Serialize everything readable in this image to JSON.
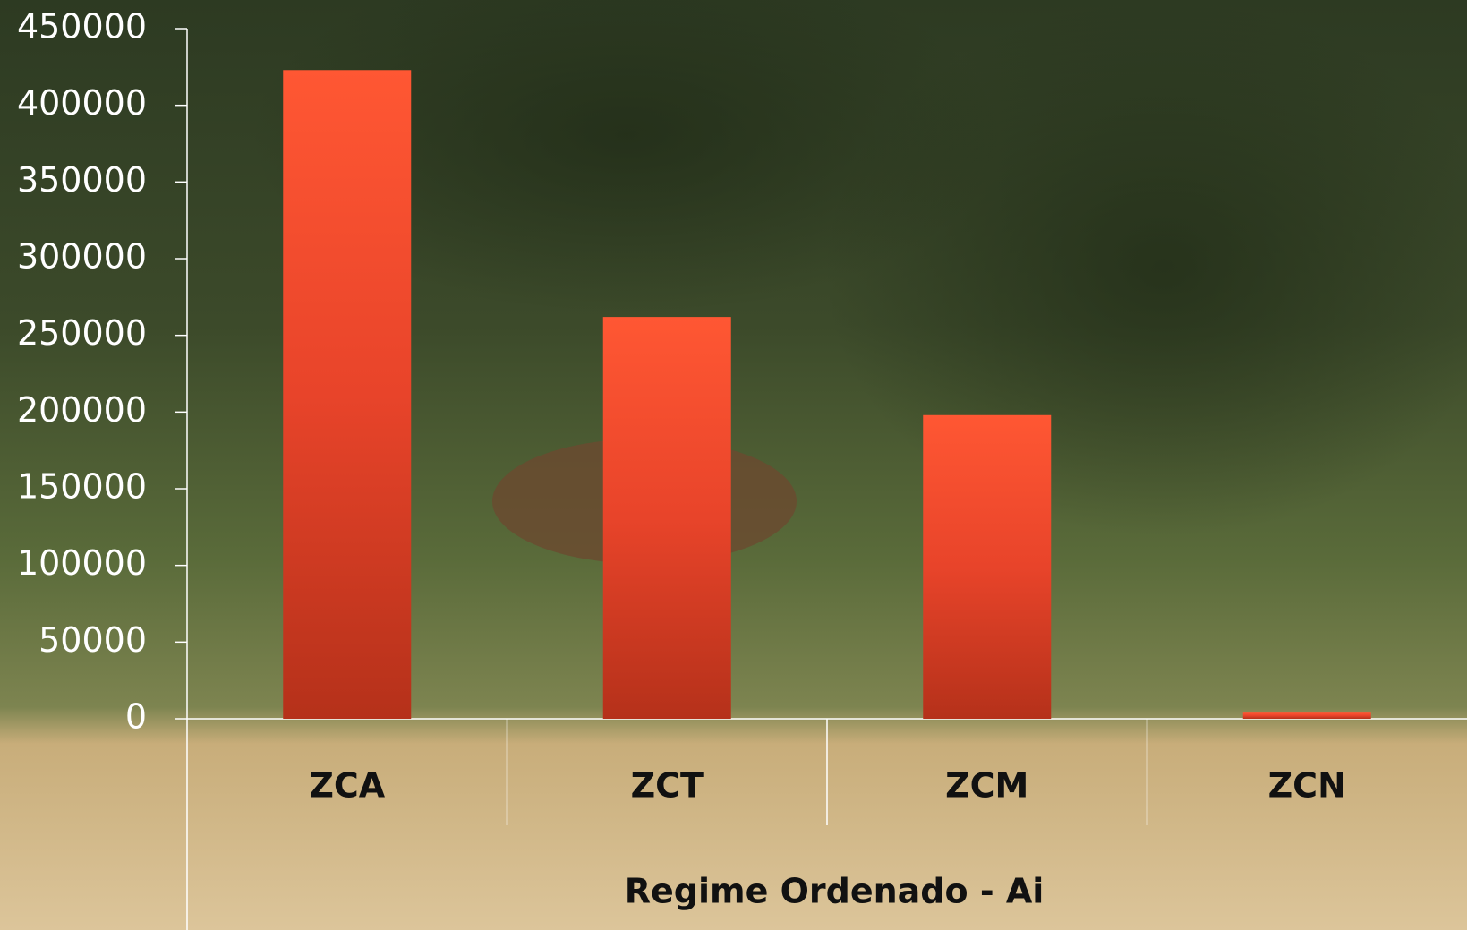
{
  "chart_data": {
    "type": "bar",
    "x_label": "Regime Ordenado - Ai",
    "categories": [
      "ZCA",
      "ZCT",
      "ZCM",
      "ZCN"
    ],
    "values": [
      423000,
      262000,
      198000,
      4000
    ],
    "color": "#e8442a",
    "ylim": [
      0,
      450000
    ],
    "yticks": [
      0,
      50000,
      100000,
      150000,
      200000,
      250000,
      300000,
      350000,
      400000,
      450000
    ],
    "grid": false
  }
}
